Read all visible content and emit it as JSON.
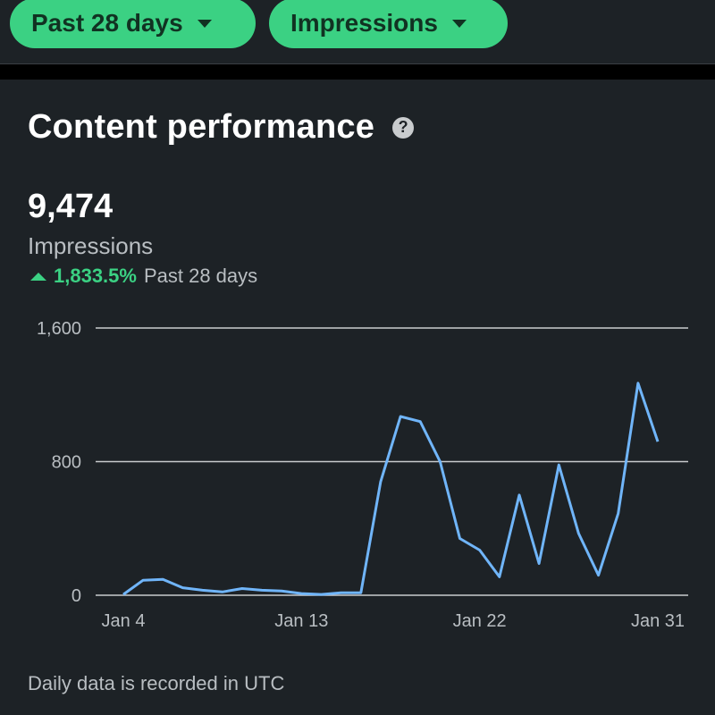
{
  "filters": {
    "range_label": "Past 28 days",
    "metric_label": "Impressions"
  },
  "card": {
    "title": "Content performance",
    "help_glyph": "?",
    "total": "9,474",
    "metric": "Impressions",
    "change_pct": "1,833.5%",
    "change_period": "Past 28 days",
    "footer": "Daily data is recorded in UTC"
  },
  "colors": {
    "accent": "#3bd183",
    "line": "#70b5f9",
    "background": "#1d2226"
  },
  "chart_data": {
    "type": "line",
    "ylim": [
      0,
      1600
    ],
    "yticks": [
      {
        "value": 0,
        "label": "0"
      },
      {
        "value": 800,
        "label": "800"
      },
      {
        "value": 1600,
        "label": "1,600"
      }
    ],
    "xticks": [
      {
        "index": 0,
        "label": "Jan 4"
      },
      {
        "index": 9,
        "label": "Jan 13"
      },
      {
        "index": 18,
        "label": "Jan 22"
      },
      {
        "index": 27,
        "label": "Jan 31"
      }
    ],
    "grid": true,
    "series": [
      {
        "values": [
          5,
          90,
          95,
          45,
          30,
          20,
          40,
          30,
          25,
          10,
          5,
          15,
          15,
          680,
          1070,
          1040,
          800,
          340,
          270,
          110,
          600,
          190,
          780,
          370,
          120,
          490,
          1270,
          920
        ]
      }
    ]
  }
}
